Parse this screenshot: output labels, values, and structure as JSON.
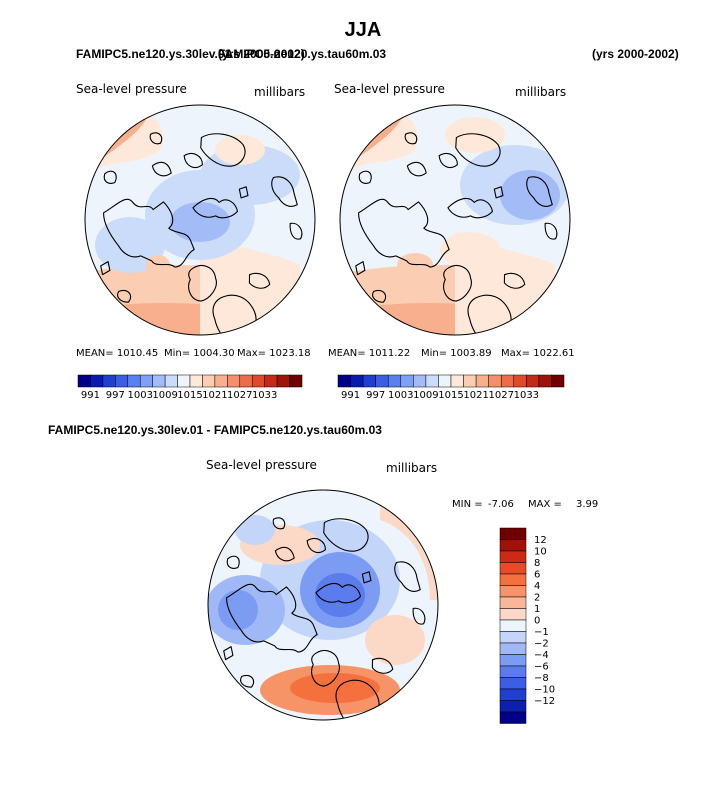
{
  "title": "JJA",
  "header": {
    "left_case": "FAMIPC5.ne120.ys.30lev.01",
    "overlap_case": "FAMIPC5.ne120.ys.tau60m.03",
    "overlap_years": "(yrs 2000-2002)",
    "right_years": "(yrs 2000-2002)"
  },
  "panels": {
    "left": {
      "field": "Sea-level pressure",
      "units": "millibars",
      "mean": "MEAN= 1010.45",
      "min": "Min= 1004.30",
      "max": "Max= 1023.18"
    },
    "right": {
      "field": "Sea-level pressure",
      "units": "millibars",
      "mean": "MEAN= 1011.22",
      "min": "Min= 1003.89",
      "max": "Max= 1022.61"
    },
    "diff": {
      "title": "FAMIPC5.ne120.ys.30lev.01 - FAMIPC5.ne120.ys.tau60m.03",
      "field": "Sea-level pressure",
      "units": "millibars",
      "min_label": "MIN =",
      "min_value": "-7.06",
      "max_label": "MAX =",
      "max_value": "3.99"
    }
  },
  "colorbar_top": {
    "colors": [
      "#000088",
      "#0a1ab0",
      "#1f3ed2",
      "#3a5fe6",
      "#5a80f0",
      "#7ea0f6",
      "#a3bcf8",
      "#cadcfa",
      "#eef4fb",
      "#fde8da",
      "#fbcdb2",
      "#f8af8d",
      "#f48f6a",
      "#ee6c48",
      "#e04a2a",
      "#c42a16",
      "#9e1408",
      "#700000"
    ],
    "ticks": [
      "991",
      "997",
      "1003",
      "1009",
      "1015",
      "1021",
      "1027",
      "1033"
    ]
  },
  "colorbar_diff": {
    "colors": [
      "#700000",
      "#a01208",
      "#cc2a14",
      "#ea4a28",
      "#f4713e",
      "#f69468",
      "#f9b798",
      "#fcd9c6",
      "#eef4fb",
      "#c3d6fa",
      "#a0b9f6",
      "#7c9bf2",
      "#5a7ced",
      "#3a5ee6",
      "#1f3ed2",
      "#0c20b0",
      "#000088"
    ],
    "ticks": [
      "12",
      "10",
      "8",
      "6",
      "4",
      "2",
      "1",
      "0",
      "−1",
      "−2",
      "−4",
      "−6",
      "−8",
      "−10",
      "−12"
    ]
  }
}
